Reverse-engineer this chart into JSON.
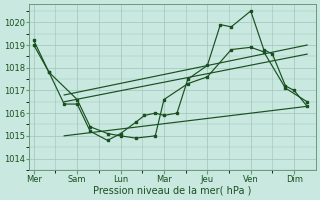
{
  "bg_color": "#c8e8e0",
  "grid_color": "#a0c4b8",
  "line_color": "#1a5020",
  "xlabel": "Pression niveau de la mer( hPa )",
  "ylim": [
    1013.5,
    1020.8
  ],
  "yticks": [
    1014,
    1015,
    1016,
    1017,
    1018,
    1019,
    1020
  ],
  "xtick_labels": [
    "Mer",
    "Sam",
    "Lun",
    "Mar",
    "Jeu",
    "Ven",
    "Dim"
  ],
  "xtick_positions": [
    0,
    1,
    2,
    3,
    4,
    5,
    6
  ],
  "xlim": [
    -0.1,
    6.5
  ],
  "lineA_x": [
    0.0,
    0.35,
    0.7,
    1.0,
    1.3,
    1.7,
    2.0,
    2.35,
    2.55,
    2.8,
    3.0,
    3.3,
    3.55,
    4.0,
    4.3,
    4.55,
    5.0,
    5.3,
    5.5,
    5.8,
    6.0,
    6.3
  ],
  "lineA_y": [
    1019.2,
    1017.8,
    1016.4,
    1016.4,
    1015.2,
    1014.8,
    1015.1,
    1015.6,
    1015.9,
    1016.0,
    1015.9,
    1016.0,
    1017.5,
    1018.1,
    1019.9,
    1019.8,
    1020.5,
    1018.8,
    1018.6,
    1017.2,
    1017.0,
    1016.3
  ],
  "lineB_x": [
    0.0,
    0.35,
    1.0,
    1.3,
    1.7,
    2.0,
    2.35,
    2.8,
    3.0,
    3.55,
    4.0,
    4.55,
    5.0,
    5.3,
    5.8,
    6.3
  ],
  "lineB_y": [
    1019.0,
    1017.8,
    1016.6,
    1015.4,
    1015.1,
    1015.0,
    1014.9,
    1015.0,
    1016.6,
    1017.3,
    1017.6,
    1018.8,
    1018.9,
    1018.7,
    1017.1,
    1016.5
  ],
  "trend1_x": [
    0.7,
    6.3
  ],
  "trend1_y": [
    1016.8,
    1019.0
  ],
  "trend2_x": [
    0.7,
    6.3
  ],
  "trend2_y": [
    1016.5,
    1018.6
  ],
  "trend3_x": [
    0.7,
    6.3
  ],
  "trend3_y": [
    1015.0,
    1016.3
  ]
}
